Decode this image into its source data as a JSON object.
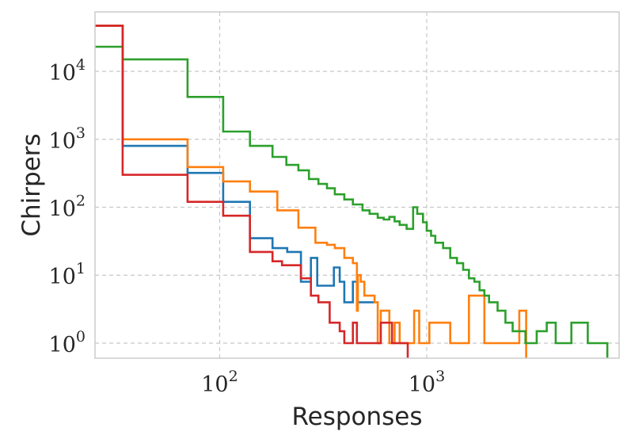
{
  "chart_data": {
    "type": "line",
    "style": "step histogram",
    "xlabel": "Responses",
    "ylabel": "Chirpers",
    "xscale": "log",
    "yscale": "log",
    "xlim": [
      25,
      8500
    ],
    "ylim": [
      0.6,
      75000
    ],
    "grid": true,
    "x_ticks": [
      {
        "base": "10",
        "exp": "2",
        "value": 100
      },
      {
        "base": "10",
        "exp": "3",
        "value": 1000
      }
    ],
    "y_ticks": [
      {
        "base": "10",
        "exp": "4",
        "value": 10000
      },
      {
        "base": "10",
        "exp": "3",
        "value": 1000
      },
      {
        "base": "10",
        "exp": "2",
        "value": 100
      },
      {
        "base": "10",
        "exp": "1",
        "value": 10
      },
      {
        "base": "10",
        "exp": "0",
        "value": 1
      }
    ],
    "series": [
      {
        "color": "#1f77b4",
        "steps": [
          [
            25,
            47000
          ],
          [
            34,
            800
          ],
          [
            70,
            320
          ],
          [
            104,
            120
          ],
          [
            140,
            35
          ],
          [
            180,
            25
          ],
          [
            212,
            22
          ],
          [
            247,
            8
          ],
          [
            276,
            18
          ],
          [
            296,
            7
          ],
          [
            330,
            7
          ],
          [
            356,
            13
          ],
          [
            380,
            8
          ],
          [
            400,
            4
          ],
          [
            440,
            8
          ],
          [
            460,
            4
          ],
          [
            560,
            0
          ]
        ]
      },
      {
        "color": "#ff7f0e",
        "steps": [
          [
            25,
            47000
          ],
          [
            34,
            1000
          ],
          [
            70,
            390
          ],
          [
            104,
            240
          ],
          [
            140,
            170
          ],
          [
            190,
            90
          ],
          [
            240,
            50
          ],
          [
            290,
            30
          ],
          [
            330,
            28
          ],
          [
            360,
            25
          ],
          [
            400,
            18
          ],
          [
            440,
            15
          ],
          [
            460,
            3
          ],
          [
            465,
            10
          ],
          [
            480,
            8
          ],
          [
            500,
            5
          ],
          [
            560,
            4
          ],
          [
            580,
            1
          ],
          [
            600,
            3
          ],
          [
            660,
            1
          ],
          [
            700,
            2
          ],
          [
            740,
            1
          ],
          [
            870,
            3
          ],
          [
            920,
            1
          ],
          [
            1030,
            2
          ],
          [
            1300,
            1
          ],
          [
            1600,
            5
          ],
          [
            1900,
            1
          ],
          [
            2500,
            1
          ],
          [
            2800,
            3
          ]
        ]
      },
      {
        "color": "#2ca02c",
        "steps": [
          [
            25,
            23000
          ],
          [
            34,
            15000
          ],
          [
            70,
            4200
          ],
          [
            104,
            1300
          ],
          [
            140,
            800
          ],
          [
            180,
            550
          ],
          [
            210,
            420
          ],
          [
            240,
            350
          ],
          [
            270,
            260
          ],
          [
            300,
            220
          ],
          [
            330,
            190
          ],
          [
            360,
            155
          ],
          [
            400,
            130
          ],
          [
            440,
            110
          ],
          [
            490,
            90
          ],
          [
            530,
            80
          ],
          [
            580,
            70
          ],
          [
            620,
            66
          ],
          [
            660,
            72
          ],
          [
            700,
            62
          ],
          [
            740,
            55
          ],
          [
            800,
            48
          ],
          [
            860,
            100
          ],
          [
            900,
            80
          ],
          [
            960,
            60
          ],
          [
            1000,
            45
          ],
          [
            1050,
            38
          ],
          [
            1100,
            30
          ],
          [
            1200,
            25
          ],
          [
            1300,
            18
          ],
          [
            1400,
            15
          ],
          [
            1500,
            12
          ],
          [
            1600,
            9
          ],
          [
            1700,
            8
          ],
          [
            1800,
            6
          ],
          [
            1900,
            5
          ],
          [
            2000,
            4
          ],
          [
            2200,
            3
          ],
          [
            2400,
            2
          ],
          [
            2600,
            1.5
          ],
          [
            3000,
            1
          ],
          [
            3400,
            1.5
          ],
          [
            3800,
            2
          ],
          [
            4200,
            1
          ],
          [
            5000,
            2
          ],
          [
            6000,
            1
          ],
          [
            6900,
            1
          ]
        ]
      },
      {
        "color": "#d62728",
        "steps": [
          [
            25,
            47000
          ],
          [
            34,
            300
          ],
          [
            70,
            120
          ],
          [
            104,
            75
          ],
          [
            140,
            22
          ],
          [
            180,
            16
          ],
          [
            200,
            14
          ],
          [
            247,
            9
          ],
          [
            276,
            5
          ],
          [
            300,
            4
          ],
          [
            340,
            2
          ],
          [
            380,
            1.5
          ],
          [
            400,
            1
          ],
          [
            440,
            2
          ],
          [
            460,
            1
          ],
          [
            520,
            1
          ],
          [
            560,
            1
          ],
          [
            600,
            2
          ],
          [
            680,
            1
          ],
          [
            750,
            1
          ]
        ]
      }
    ]
  }
}
